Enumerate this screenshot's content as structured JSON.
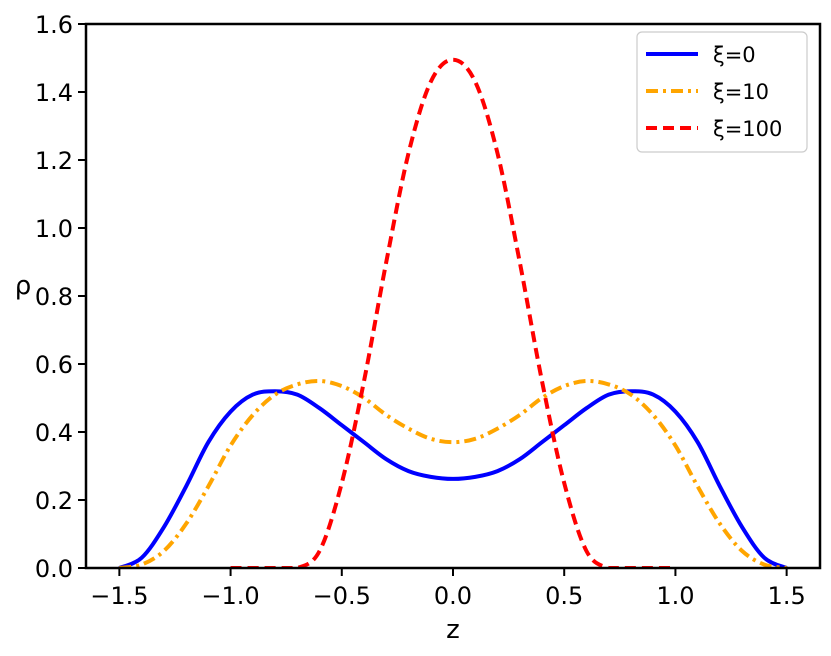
{
  "chart_data": {
    "type": "line",
    "title": "",
    "xlabel": "z",
    "ylabel": "ρ",
    "xlim": [
      -1.65,
      1.65
    ],
    "ylim": [
      0.0,
      1.6
    ],
    "xticks": [
      -1.5,
      -1.0,
      -0.5,
      0.0,
      0.5,
      1.0,
      1.5
    ],
    "xtick_labels": [
      "−1.5",
      "−1.0",
      "−0.5",
      "0.0",
      "0.5",
      "1.0",
      "1.5"
    ],
    "yticks": [
      0.0,
      0.2,
      0.4,
      0.6,
      0.8,
      1.0,
      1.2,
      1.4,
      1.6
    ],
    "ytick_labels": [
      "0.0",
      "0.2",
      "0.4",
      "0.6",
      "0.8",
      "1.0",
      "1.2",
      "1.4",
      "1.6"
    ],
    "grid": false,
    "legend_position": "top-right",
    "series": [
      {
        "name": "ξ=0",
        "color": "#0000ff",
        "style": "solid",
        "x": [
          -1.5,
          -1.4,
          -1.3,
          -1.2,
          -1.1,
          -1.0,
          -0.9,
          -0.8,
          -0.7,
          -0.6,
          -0.5,
          -0.4,
          -0.3,
          -0.2,
          -0.1,
          0.0,
          0.1,
          0.2,
          0.3,
          0.4,
          0.5,
          0.6,
          0.7,
          0.8,
          0.9,
          1.0,
          1.1,
          1.2,
          1.3,
          1.4,
          1.5
        ],
        "y": [
          0.0,
          0.03,
          0.12,
          0.24,
          0.37,
          0.46,
          0.51,
          0.52,
          0.51,
          0.47,
          0.42,
          0.37,
          0.32,
          0.285,
          0.268,
          0.262,
          0.268,
          0.285,
          0.32,
          0.37,
          0.42,
          0.47,
          0.51,
          0.52,
          0.51,
          0.46,
          0.37,
          0.24,
          0.12,
          0.03,
          0.0
        ]
      },
      {
        "name": "ξ=10",
        "color": "#ffa500",
        "style": "dashdot",
        "x": [
          -1.5,
          -1.4,
          -1.3,
          -1.2,
          -1.1,
          -1.0,
          -0.9,
          -0.8,
          -0.7,
          -0.6,
          -0.5,
          -0.4,
          -0.3,
          -0.2,
          -0.1,
          0.0,
          0.1,
          0.2,
          0.3,
          0.4,
          0.5,
          0.6,
          0.7,
          0.8,
          0.9,
          1.0,
          1.1,
          1.2,
          1.3,
          1.4,
          1.5
        ],
        "y": [
          0.0,
          0.01,
          0.05,
          0.13,
          0.24,
          0.36,
          0.45,
          0.51,
          0.54,
          0.55,
          0.535,
          0.5,
          0.45,
          0.41,
          0.38,
          0.37,
          0.38,
          0.41,
          0.45,
          0.5,
          0.535,
          0.55,
          0.54,
          0.51,
          0.45,
          0.36,
          0.24,
          0.13,
          0.05,
          0.01,
          0.0
        ]
      },
      {
        "name": "ξ=100",
        "color": "#ff0000",
        "style": "dashed",
        "x": [
          -1.0,
          -0.8,
          -0.7,
          -0.6,
          -0.5,
          -0.4,
          -0.3,
          -0.2,
          -0.1,
          0.0,
          0.1,
          0.2,
          0.3,
          0.4,
          0.5,
          0.6,
          0.7,
          0.8,
          1.0
        ],
        "y": [
          0.0,
          0.0,
          0.0,
          0.05,
          0.25,
          0.55,
          0.9,
          1.22,
          1.43,
          1.495,
          1.43,
          1.22,
          0.9,
          0.55,
          0.25,
          0.05,
          0.0,
          0.0,
          0.0
        ]
      }
    ]
  }
}
